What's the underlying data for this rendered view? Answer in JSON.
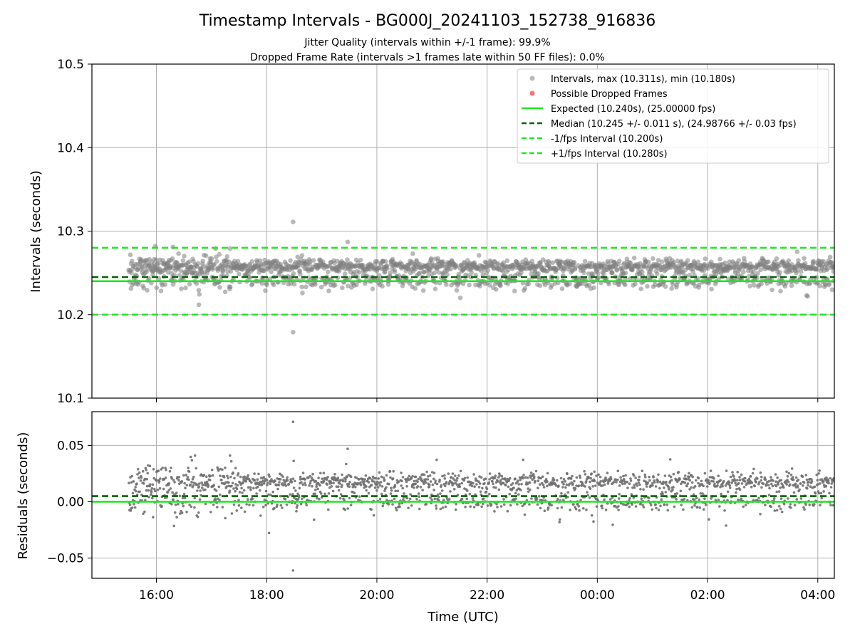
{
  "chart_data": [
    {
      "type": "scatter",
      "title": "Timestamp Intervals - BG000J_20241103_152738_916836",
      "subtitle_lines": [
        "Jitter Quality (intervals within +/-1 frame): 99.9%",
        "Dropped Frame Rate (intervals >1 frames late within 50 FF files): 0.0%"
      ],
      "ylabel": "Intervals (seconds)",
      "ylim": [
        10.1,
        10.5
      ],
      "yticks": [
        10.1,
        10.2,
        10.3,
        10.4,
        10.5
      ],
      "ytick_labels": [
        "10.1",
        "10.2",
        "10.3",
        "10.4",
        "10.5"
      ],
      "x_range_hours": [
        14.83,
        28.3
      ],
      "grid": true,
      "legend_position": "upper right",
      "legend": [
        {
          "label": "Intervals, max (10.311s), min (10.180s)",
          "kind": "marker",
          "color": "#808080"
        },
        {
          "label": "Possible Dropped Frames",
          "kind": "marker",
          "color": "#ff0000"
        },
        {
          "label": "Expected (10.240s), (25.00000 fps)",
          "kind": "solid",
          "color": "#22e622"
        },
        {
          "label": "Median (10.245 +/- 0.011 s), (24.98766 +/- 0.03 fps)",
          "kind": "dashed",
          "color": "#006400"
        },
        {
          "label": "-1/fps Interval (10.200s)",
          "kind": "dashed",
          "color": "#22e622"
        },
        {
          "label": "+1/fps Interval (10.280s)",
          "kind": "dashed",
          "color": "#22e622"
        }
      ],
      "reference_lines": {
        "expected": 10.24,
        "median": 10.245,
        "minus_one_fps": 10.2,
        "plus_one_fps": 10.28
      },
      "series": [
        {
          "name": "Intervals",
          "x_start_hours": 15.5,
          "x_end_hours": 28.3,
          "count": 1800,
          "upper_band_center": 10.258,
          "lower_band_center": 10.24,
          "value_max": 10.311,
          "value_min": 10.18,
          "outliers": [
            {
              "x_hours": 18.48,
              "y": 10.311
            },
            {
              "x_hours": 18.48,
              "y": 10.179
            },
            {
              "x_hours": 19.47,
              "y": 10.287
            },
            {
              "x_hours": 15.98,
              "y": 10.282
            },
            {
              "x_hours": 16.3,
              "y": 10.281
            }
          ]
        }
      ]
    },
    {
      "type": "scatter",
      "title": "",
      "xlabel": "Time (UTC)",
      "ylabel": "Residuals (seconds)",
      "ylim": [
        -0.068,
        0.08
      ],
      "yticks": [
        -0.05,
        0.0,
        0.05
      ],
      "ytick_labels": [
        "−0.05",
        "0.00",
        "0.05"
      ],
      "xticks_hours": [
        16,
        18,
        20,
        22,
        24,
        26,
        28
      ],
      "xtick_labels": [
        "16:00",
        "18:00",
        "20:00",
        "22:00",
        "00:00",
        "02:00",
        "04:00"
      ],
      "x_range_hours": [
        14.83,
        28.3
      ],
      "grid": true,
      "reference_lines": {
        "zero": 0.0,
        "median_offset": 0.005
      },
      "series": [
        {
          "name": "Residuals",
          "x_start_hours": 15.5,
          "x_end_hours": 28.3,
          "count": 1800,
          "upper_band_center": 0.018,
          "lower_band_center": 0.0,
          "outliers": [
            {
              "x_hours": 18.48,
              "y": 0.071
            },
            {
              "x_hours": 18.48,
              "y": -0.061
            },
            {
              "x_hours": 19.47,
              "y": 0.047
            }
          ]
        }
      ]
    }
  ]
}
